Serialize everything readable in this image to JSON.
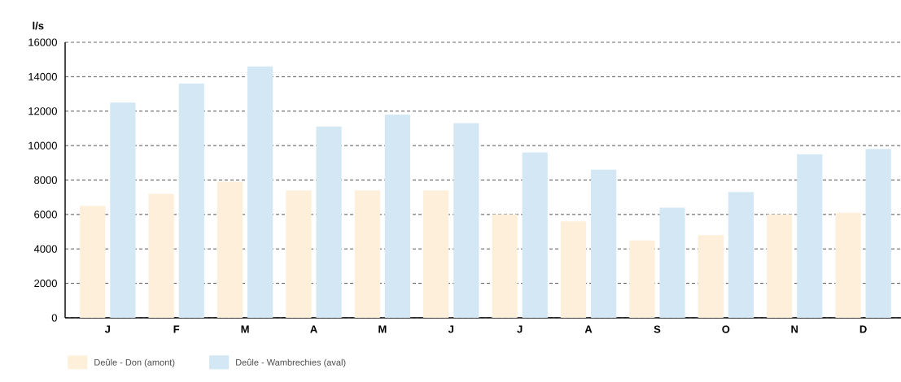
{
  "chart_data": {
    "type": "bar",
    "ylabel": "l/s",
    "categories": [
      "J",
      "F",
      "M",
      "A",
      "M",
      "J",
      "J",
      "A",
      "S",
      "O",
      "N",
      "D"
    ],
    "series": [
      {
        "name": "Deûle - Don (amont)",
        "color": "#fdefd9",
        "values": [
          6500,
          7200,
          7900,
          7400,
          7400,
          7400,
          6000,
          5600,
          4500,
          4800,
          6000,
          6100
        ]
      },
      {
        "name": "Deûle - Wambrechies (aval)",
        "color": "#d3e8f4",
        "values": [
          12500,
          13600,
          14600,
          11100,
          11800,
          11300,
          9600,
          8600,
          6400,
          7300,
          9500,
          9800
        ]
      }
    ],
    "ylim": [
      0,
      16000
    ],
    "yticks": [
      0,
      2000,
      4000,
      6000,
      8000,
      10000,
      12000,
      14000,
      16000
    ],
    "grid": "y",
    "legend": "bottom"
  }
}
